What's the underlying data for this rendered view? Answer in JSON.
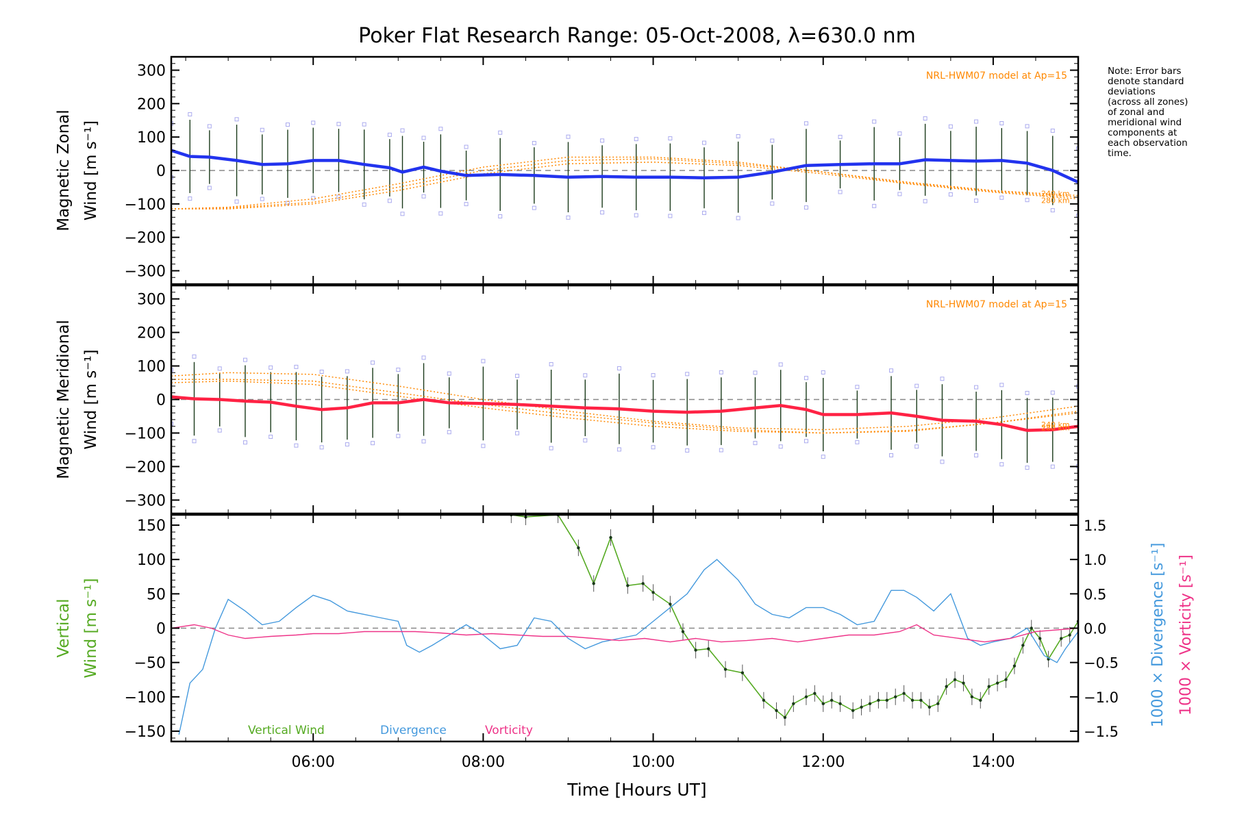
{
  "figure": {
    "title": "Poker Flat Research Range: 05-Oct-2008, λ=630.0 nm",
    "note": "Note: Error bars\ndenote standard\ndeviations\n(across all zones)\nof zonal and\nmeridional wind\ncomponents at\neach observation\ntime.",
    "x_axis_label": "Time [Hours UT]"
  },
  "chart_data": [
    {
      "type": "line",
      "panel": "zonal",
      "ylabel_line1": "Magnetic Zonal",
      "ylabel_line2": "Wind [m s⁻¹]",
      "model_label": "NRL-HWM07 model at Ap=15",
      "model_alt_labels": [
        "240 km",
        "280 km"
      ],
      "xlim": [
        4.33,
        15.0
      ],
      "ylim": [
        -340,
        340
      ],
      "yticks": [
        -300,
        -200,
        -100,
        0,
        100,
        200,
        300
      ],
      "xticks": [
        6,
        8,
        10,
        12,
        14
      ],
      "xtick_labels": [
        "06:00",
        "08:00",
        "10:00",
        "12:00",
        "14:00"
      ],
      "colors": {
        "mean": "#2233ee",
        "model": "#ff8800",
        "errorbar": "#1a3a1a",
        "scatter": "#aaaaee"
      },
      "series": [
        {
          "role": "mean",
          "x": [
            4.33,
            4.55,
            4.78,
            5.1,
            5.4,
            5.7,
            6.0,
            6.3,
            6.6,
            6.9,
            7.05,
            7.3,
            7.5,
            7.8,
            8.2,
            8.6,
            9.0,
            9.4,
            9.8,
            10.2,
            10.6,
            11.0,
            11.4,
            11.8,
            12.2,
            12.6,
            12.9,
            13.2,
            13.5,
            13.8,
            14.1,
            14.4,
            14.7,
            15.0
          ],
          "y": [
            60,
            42,
            40,
            30,
            18,
            20,
            30,
            30,
            18,
            8,
            -5,
            10,
            -2,
            -15,
            -12,
            -15,
            -20,
            -18,
            -20,
            -20,
            -22,
            -20,
            -5,
            15,
            18,
            20,
            20,
            32,
            30,
            28,
            30,
            22,
            0,
            -35
          ]
        },
        {
          "role": "model",
          "x": [
            4.33,
            5.0,
            6.0,
            7.0,
            8.0,
            9.0,
            10.0,
            11.0,
            12.0,
            13.0,
            14.0,
            15.0
          ],
          "y": [
            -115,
            -115,
            -100,
            -60,
            -10,
            20,
            25,
            15,
            -10,
            -40,
            -65,
            -85
          ]
        },
        {
          "role": "model",
          "x": [
            4.33,
            5.0,
            6.0,
            7.0,
            8.0,
            9.0,
            10.0,
            11.0,
            12.0,
            13.0,
            14.0,
            15.0
          ],
          "y": [
            -115,
            -110,
            -85,
            -40,
            10,
            40,
            40,
            25,
            -5,
            -35,
            -60,
            -75
          ]
        },
        {
          "role": "model",
          "x": [
            4.33,
            5.0,
            6.0,
            7.0,
            8.0,
            9.0,
            10.0,
            11.0,
            12.0,
            13.0,
            14.0,
            15.0
          ],
          "y": [
            -115,
            -112,
            -95,
            -50,
            0,
            30,
            35,
            20,
            -5,
            -38,
            -62,
            -80
          ]
        }
      ]
    },
    {
      "type": "line",
      "panel": "meridional",
      "ylabel_line1": "Magnetic Meridional",
      "ylabel_line2": "Wind [m s⁻¹]",
      "model_label": "NRL-HWM07 model at Ap=15",
      "model_alt_labels": [
        "240 km",
        "280 km"
      ],
      "xlim": [
        4.33,
        15.0
      ],
      "ylim": [
        -340,
        340
      ],
      "yticks": [
        -300,
        -200,
        -100,
        0,
        100,
        200,
        300
      ],
      "colors": {
        "mean": "#ff2244",
        "model": "#ff8800",
        "errorbar": "#1a3a1a",
        "scatter": "#aaaaee"
      },
      "series": [
        {
          "role": "mean",
          "x": [
            4.33,
            4.6,
            4.9,
            5.2,
            5.5,
            5.8,
            6.1,
            6.4,
            6.7,
            7.0,
            7.3,
            7.6,
            8.0,
            8.4,
            8.8,
            9.2,
            9.6,
            10.0,
            10.4,
            10.8,
            11.2,
            11.5,
            11.8,
            12.0,
            12.4,
            12.8,
            13.1,
            13.4,
            13.8,
            14.1,
            14.4,
            14.7,
            15.0
          ],
          "y": [
            8,
            2,
            0,
            -5,
            -8,
            -20,
            -30,
            -25,
            -10,
            -10,
            0,
            -10,
            -12,
            -15,
            -20,
            -25,
            -28,
            -35,
            -38,
            -35,
            -25,
            -18,
            -30,
            -45,
            -45,
            -40,
            -50,
            -62,
            -65,
            -75,
            -92,
            -90,
            -80
          ]
        },
        {
          "role": "model",
          "x": [
            4.33,
            5.0,
            6.0,
            7.0,
            8.0,
            9.0,
            10.0,
            11.0,
            12.0,
            13.0,
            14.0,
            15.0
          ],
          "y": [
            60,
            60,
            55,
            20,
            -15,
            -45,
            -70,
            -90,
            -100,
            -95,
            -70,
            -40
          ]
        },
        {
          "role": "model",
          "x": [
            4.33,
            5.0,
            6.0,
            7.0,
            8.0,
            9.0,
            10.0,
            11.0,
            12.0,
            13.0,
            14.0,
            15.0
          ],
          "y": [
            70,
            80,
            75,
            40,
            0,
            -35,
            -65,
            -85,
            -90,
            -80,
            -55,
            -20
          ]
        },
        {
          "role": "model",
          "x": [
            4.33,
            5.0,
            6.0,
            7.0,
            8.0,
            9.0,
            10.0,
            11.0,
            12.0,
            13.0,
            14.0,
            15.0
          ],
          "y": [
            50,
            55,
            45,
            10,
            -25,
            -55,
            -80,
            -95,
            -100,
            -92,
            -70,
            -35
          ]
        }
      ]
    },
    {
      "type": "line",
      "panel": "vertical",
      "ylabel_line1": "Vertical",
      "ylabel_line2": "Wind [m s⁻¹]",
      "y2label_line1": "1000 × Divergence [s⁻¹]",
      "y2label_line2": "1000 × Vorticity [s⁻¹]",
      "xlim": [
        4.33,
        15.0
      ],
      "ylim": [
        -165,
        165
      ],
      "yticks": [
        -150,
        -100,
        -50,
        0,
        50,
        100,
        150
      ],
      "y2lim": [
        -1.65,
        1.65
      ],
      "y2ticks": [
        -1.5,
        -1.0,
        -0.5,
        0.0,
        0.5,
        1.0,
        1.5
      ],
      "y2tick_labels": [
        "−1.5",
        "−1.0",
        "−0.5",
        "0.0",
        "0.5",
        "1.0",
        "1.5"
      ],
      "legend": [
        {
          "label": "Vertical Wind",
          "color": "#55aa22"
        },
        {
          "label": "Divergence",
          "color": "#4499dd"
        },
        {
          "label": "Vorticity",
          "color": "#ee3388"
        }
      ],
      "series": [
        {
          "name": "Vertical Wind",
          "axis": "left",
          "color": "#55aa22",
          "x": [
            8.33,
            8.5,
            8.88,
            9.12,
            9.3,
            9.5,
            9.7,
            9.88,
            10.0,
            10.2,
            10.35,
            10.5,
            10.65,
            10.85,
            11.05,
            11.3,
            11.45,
            11.55,
            11.65,
            11.8,
            11.9,
            12.0,
            12.1,
            12.2,
            12.35,
            12.45,
            12.55,
            12.65,
            12.75,
            12.85,
            12.95,
            13.05,
            13.15,
            13.25,
            13.35,
            13.45,
            13.55,
            13.65,
            13.75,
            13.85,
            13.95,
            14.05,
            14.15,
            14.25,
            14.35,
            14.45,
            14.55,
            14.65,
            14.8,
            14.9,
            15.0
          ],
          "y": [
            165,
            162,
            165,
            117,
            65,
            132,
            62,
            65,
            52,
            35,
            -5,
            -32,
            -30,
            -60,
            -65,
            -105,
            -120,
            -130,
            -110,
            -100,
            -95,
            -110,
            -105,
            -110,
            -120,
            -115,
            -110,
            -105,
            -105,
            -100,
            -95,
            -105,
            -105,
            -115,
            -110,
            -85,
            -75,
            -80,
            -100,
            -105,
            -85,
            -80,
            -75,
            -55,
            -25,
            0,
            -15,
            -45,
            -15,
            -10,
            10
          ]
        },
        {
          "name": "Divergence",
          "axis": "right",
          "color": "#4499dd",
          "x": [
            4.42,
            4.55,
            4.7,
            4.85,
            5.0,
            5.2,
            5.4,
            5.6,
            5.8,
            6.0,
            6.2,
            6.4,
            6.6,
            6.8,
            7.0,
            7.1,
            7.25,
            7.4,
            7.6,
            7.8,
            8.0,
            8.2,
            8.4,
            8.6,
            8.8,
            9.0,
            9.2,
            9.4,
            9.6,
            9.8,
            10.0,
            10.2,
            10.4,
            10.6,
            10.75,
            11.0,
            11.2,
            11.4,
            11.6,
            11.8,
            12.0,
            12.2,
            12.4,
            12.6,
            12.8,
            12.95,
            13.1,
            13.3,
            13.5,
            13.7,
            13.85,
            14.0,
            14.2,
            14.4,
            14.6,
            14.75,
            14.85,
            15.0
          ],
          "y": [
            -1.55,
            -0.8,
            -0.6,
            0.0,
            0.42,
            0.25,
            0.05,
            0.1,
            0.3,
            0.48,
            0.4,
            0.25,
            0.2,
            0.15,
            0.1,
            -0.25,
            -0.35,
            -0.25,
            -0.1,
            0.05,
            -0.1,
            -0.3,
            -0.25,
            0.15,
            0.1,
            -0.15,
            -0.3,
            -0.2,
            -0.15,
            -0.1,
            0.1,
            0.3,
            0.5,
            0.85,
            1.0,
            0.7,
            0.35,
            0.2,
            0.15,
            0.3,
            0.3,
            0.2,
            0.05,
            0.1,
            0.55,
            0.55,
            0.45,
            0.25,
            0.5,
            -0.15,
            -0.25,
            -0.2,
            -0.15,
            0.0,
            -0.4,
            -0.5,
            -0.3,
            -0.05
          ]
        },
        {
          "name": "Vorticity",
          "axis": "right",
          "color": "#ee3388",
          "x": [
            4.33,
            4.6,
            4.8,
            5.0,
            5.2,
            5.5,
            5.8,
            6.0,
            6.3,
            6.6,
            6.9,
            7.2,
            7.5,
            7.8,
            8.1,
            8.4,
            8.7,
            9.0,
            9.3,
            9.6,
            9.9,
            10.2,
            10.5,
            10.8,
            11.1,
            11.4,
            11.7,
            12.0,
            12.3,
            12.6,
            12.9,
            13.1,
            13.3,
            13.6,
            13.9,
            14.2,
            14.5,
            14.8,
            15.0
          ],
          "y": [
            0.0,
            0.05,
            0.0,
            -0.1,
            -0.15,
            -0.12,
            -0.1,
            -0.08,
            -0.08,
            -0.05,
            -0.05,
            -0.05,
            -0.07,
            -0.1,
            -0.08,
            -0.1,
            -0.12,
            -0.12,
            -0.15,
            -0.18,
            -0.15,
            -0.2,
            -0.15,
            -0.2,
            -0.18,
            -0.15,
            -0.2,
            -0.15,
            -0.1,
            -0.1,
            -0.05,
            0.05,
            -0.1,
            -0.15,
            -0.2,
            -0.15,
            -0.05,
            -0.02,
            0.0
          ]
        }
      ]
    }
  ]
}
